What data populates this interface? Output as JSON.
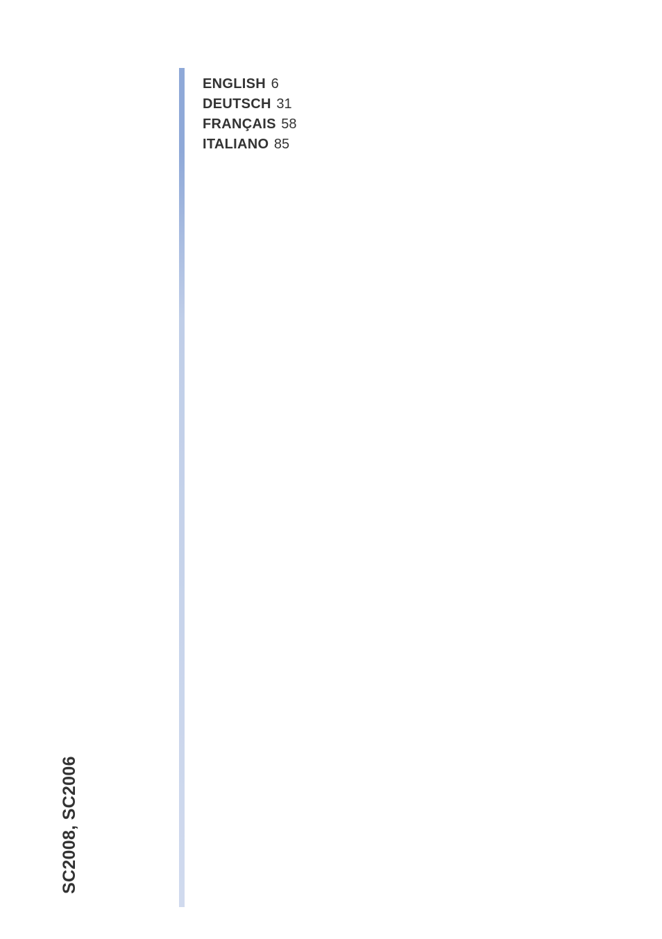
{
  "toc": {
    "entries": [
      {
        "label": "ENGLISH",
        "page": "6"
      },
      {
        "label": "DEUTSCH",
        "page": "31"
      },
      {
        "label": "FRANÇAIS",
        "page": "58"
      },
      {
        "label": "ITALIANO",
        "page": "85"
      }
    ]
  },
  "spine": {
    "label": "SC2008, SC2006"
  },
  "style": {
    "background_color": "#ffffff",
    "text_color": "#333333",
    "rule_gradient_top": "#8fa9d8",
    "rule_gradient_bottom": "#d0daee",
    "toc_fontsize": 20,
    "spine_fontsize": 25
  }
}
